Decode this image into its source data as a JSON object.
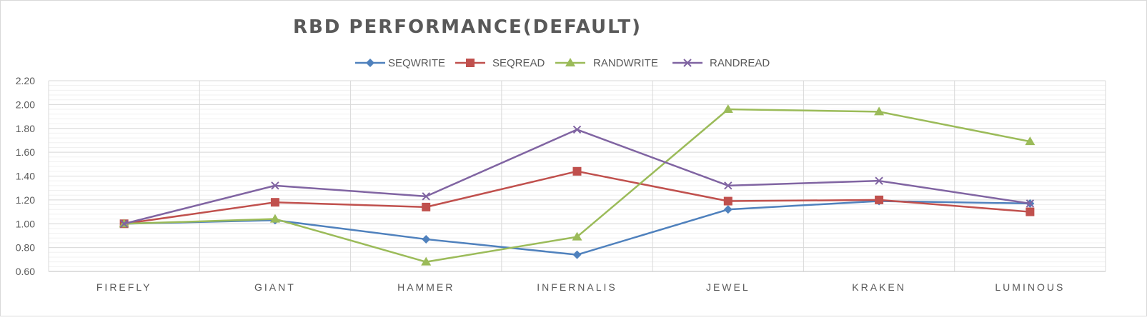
{
  "chart_data": {
    "type": "line",
    "title": "RBD PERFORMANCE(DEFAULT)",
    "xlabel": "",
    "ylabel": "",
    "categories": [
      "FIREFLY",
      "GIANT",
      "HAMMER",
      "INFERNALIS",
      "JEWEL",
      "KRAKEN",
      "LUMINOUS"
    ],
    "ylim": [
      0.6,
      2.2
    ],
    "yticks": [
      "2.20",
      "2.00",
      "1.80",
      "1.60",
      "1.40",
      "1.20",
      "1.00",
      "0.80",
      "0.60"
    ],
    "grid": {
      "horizontal_major": true,
      "horizontal_minor": true,
      "vertical": true
    },
    "legend_position": "top",
    "series": [
      {
        "name": "SEQWRITE",
        "color": "#4F81BD",
        "marker": "diamond",
        "values": [
          1.0,
          1.03,
          0.87,
          0.74,
          1.12,
          1.19,
          1.17
        ]
      },
      {
        "name": "SEQREAD",
        "color": "#C0504D",
        "marker": "square",
        "values": [
          1.0,
          1.18,
          1.14,
          1.44,
          1.19,
          1.2,
          1.1
        ]
      },
      {
        "name": "RANDWRITE",
        "color": "#9BBB59",
        "marker": "triangle",
        "values": [
          1.0,
          1.04,
          0.68,
          0.89,
          1.96,
          1.94,
          1.69
        ]
      },
      {
        "name": "RANDREAD",
        "color": "#8064A2",
        "marker": "x",
        "values": [
          1.0,
          1.32,
          1.23,
          1.79,
          1.32,
          1.36,
          1.17
        ]
      }
    ]
  }
}
